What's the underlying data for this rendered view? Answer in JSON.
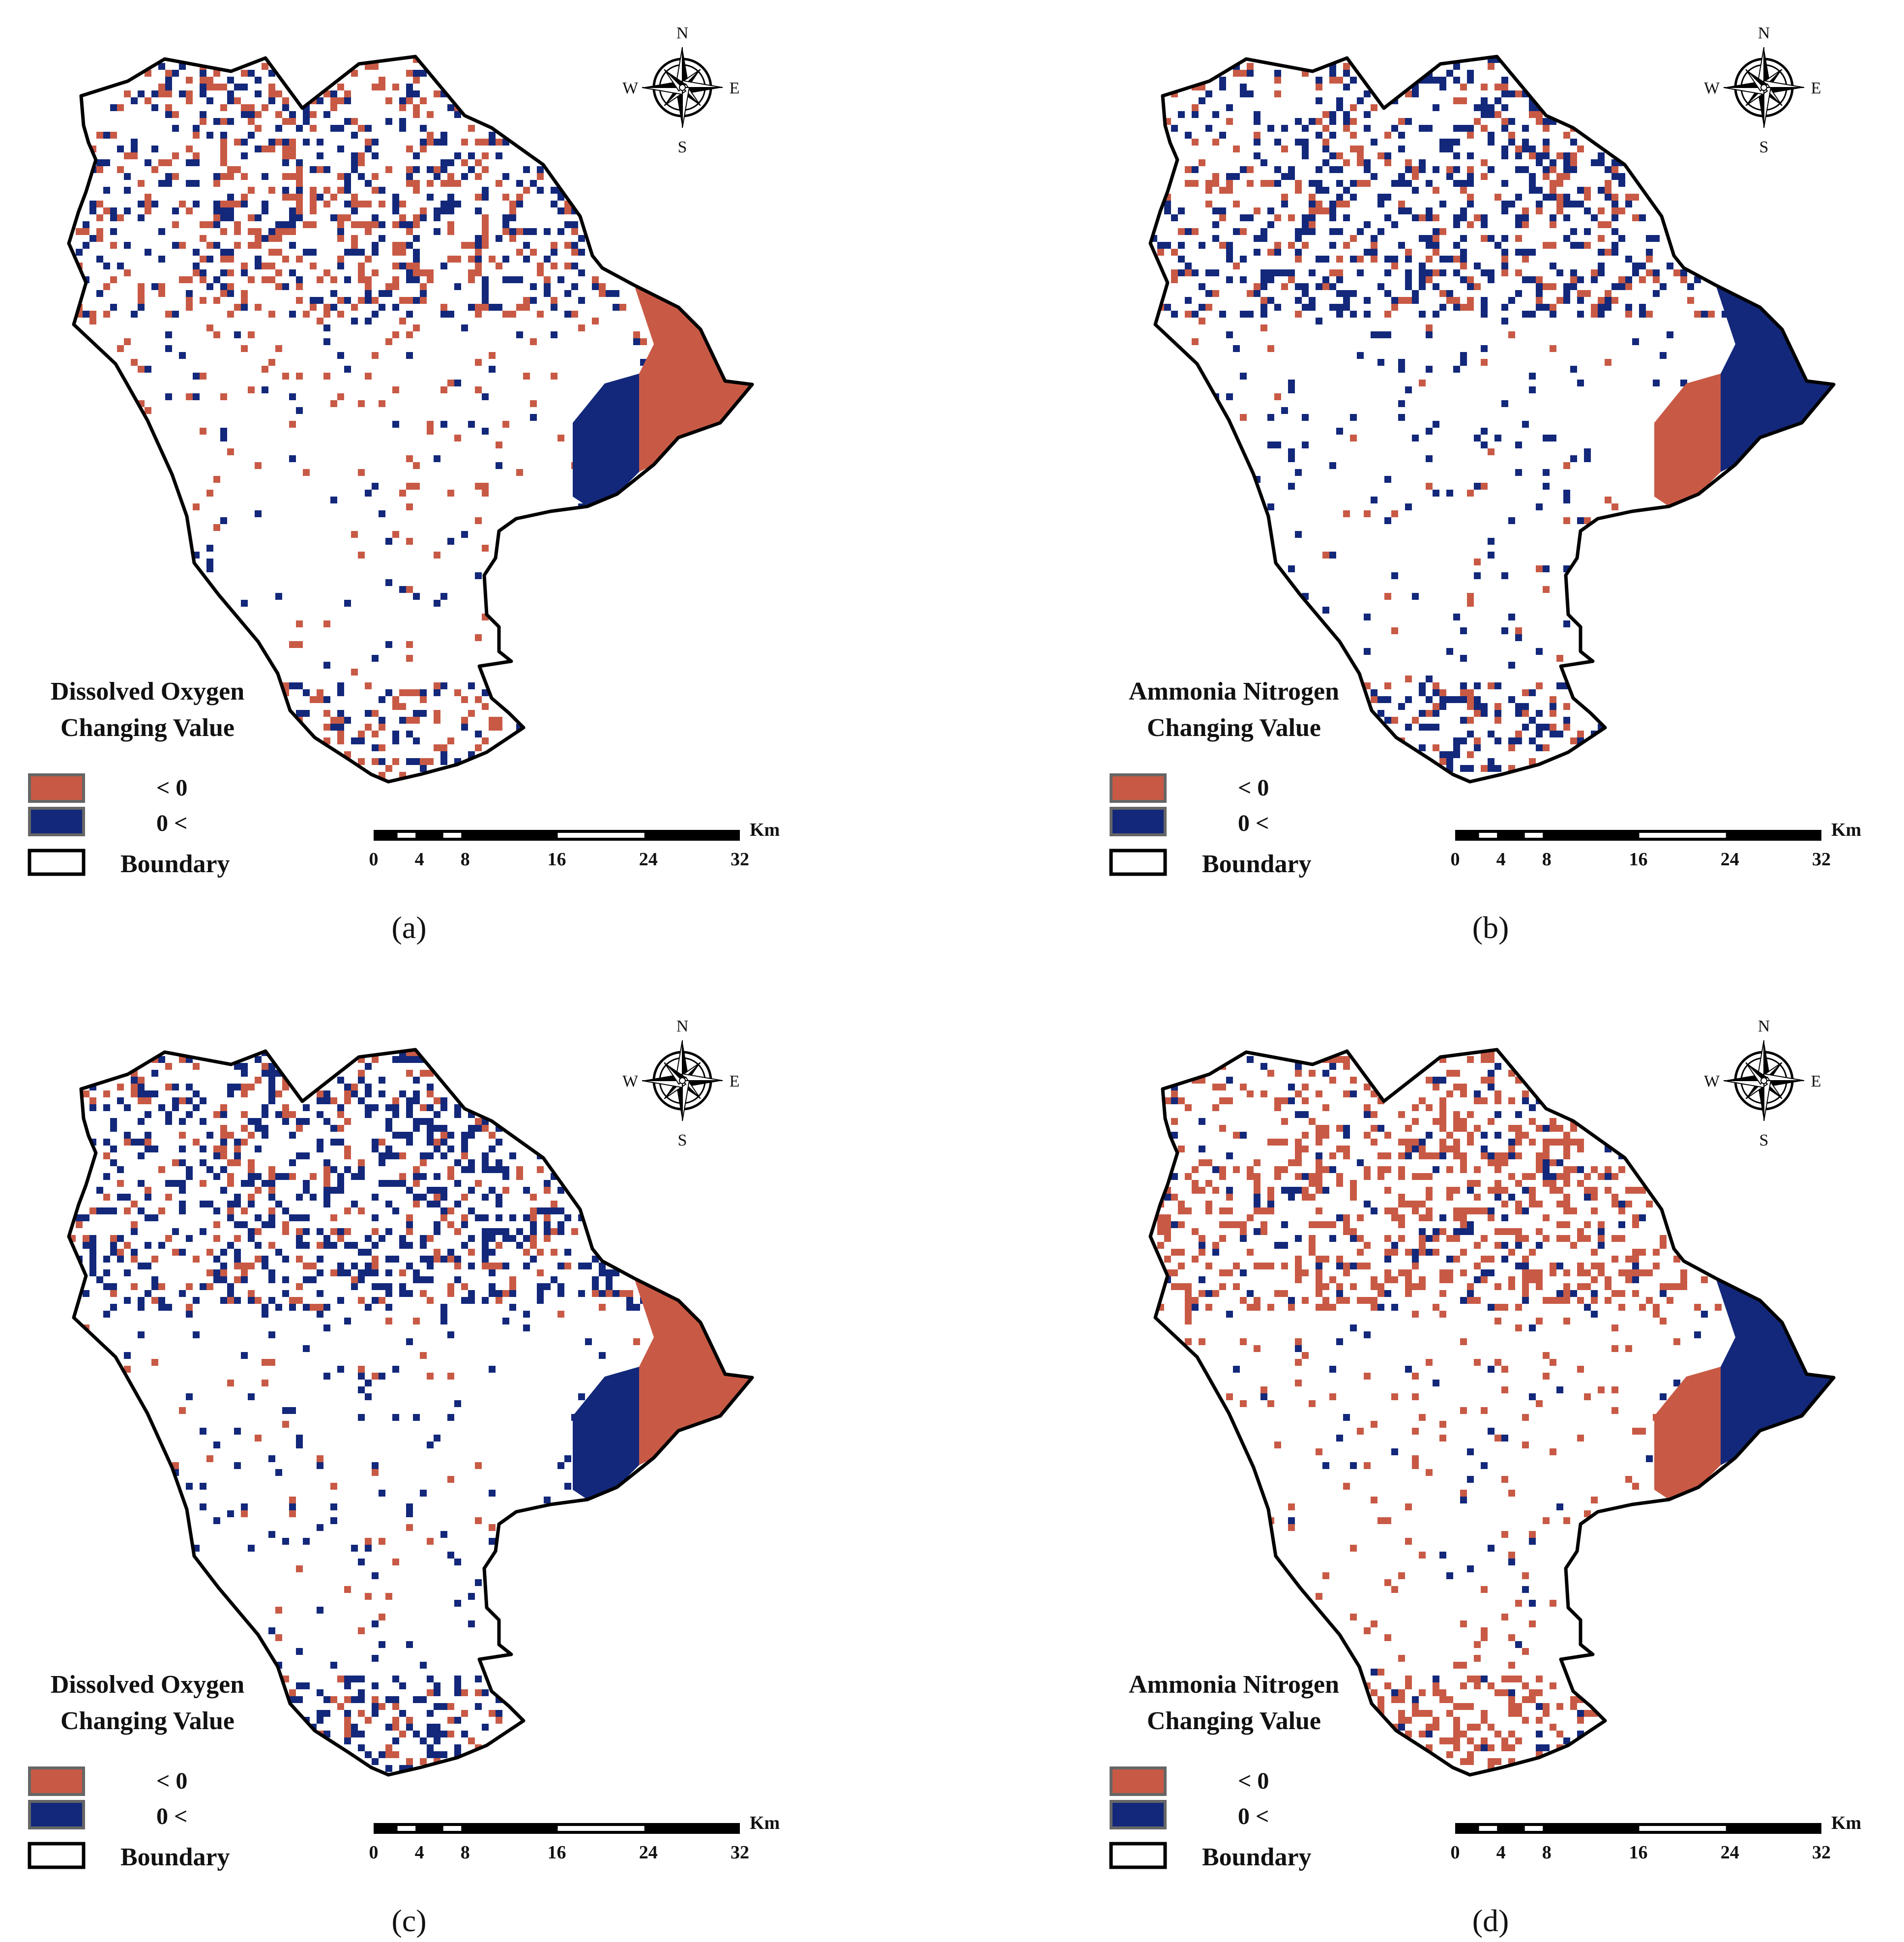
{
  "figure": {
    "panels": [
      {
        "id": "a",
        "caption": "(a)",
        "legend_title_line1": "Dissolved Oxygen",
        "legend_title_line2": "Changing Value",
        "legend_item_negative": "<   0",
        "legend_item_positive": "0   <",
        "legend_item_boundary": "Boundary",
        "dominant": "mixed",
        "east_tip": "negative",
        "east_inner": "positive"
      },
      {
        "id": "b",
        "caption": "(b)",
        "legend_title_line1": "Ammonia Nitrogen",
        "legend_title_line2": "Changing Value",
        "legend_item_negative": "<   0",
        "legend_item_positive": "0   <",
        "legend_item_boundary": "Boundary",
        "dominant": "positive",
        "east_tip": "positive",
        "east_inner": "negative"
      },
      {
        "id": "c",
        "caption": "(c)",
        "legend_title_line1": "Dissolved Oxygen",
        "legend_title_line2": "Changing Value",
        "legend_item_negative": "<   0",
        "legend_item_positive": "0   <",
        "legend_item_boundary": "Boundary",
        "dominant": "positive",
        "east_tip": "negative",
        "east_inner": "positive"
      },
      {
        "id": "d",
        "caption": "(d)",
        "legend_title_line1": "Ammonia Nitrogen",
        "legend_title_line2": "Changing Value",
        "legend_item_negative": "<   0",
        "legend_item_positive": "0   <",
        "legend_item_boundary": "Boundary",
        "dominant": "negative",
        "east_tip": "positive",
        "east_inner": "negative"
      }
    ],
    "compass": {
      "north": "N",
      "south": "S",
      "east": "E",
      "west": "W"
    },
    "scale_bar": {
      "unit": "Km",
      "ticks": [
        "0",
        "4",
        "8",
        "16",
        "24",
        "32"
      ],
      "tick_values": [
        0,
        4,
        8,
        16,
        24,
        32
      ]
    },
    "colors": {
      "negative": "#c85a45",
      "positive": "#13287a",
      "boundary": "#000000",
      "legend_border": "#666666"
    }
  }
}
